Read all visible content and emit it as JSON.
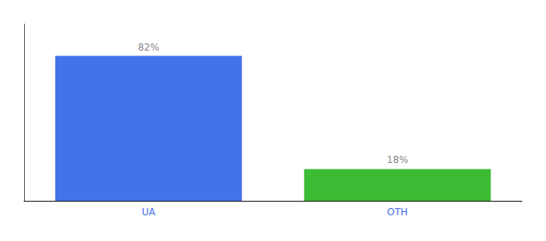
{
  "chart_data": {
    "type": "bar",
    "categories": [
      "UA",
      "OTH"
    ],
    "values": [
      82,
      18
    ],
    "value_labels": [
      "82%",
      "18%"
    ],
    "data_labels": true,
    "colors": [
      "#4472e8",
      "#3dbb35"
    ],
    "ylim": [
      0,
      100
    ],
    "tick_labels": "x",
    "grid": false
  }
}
